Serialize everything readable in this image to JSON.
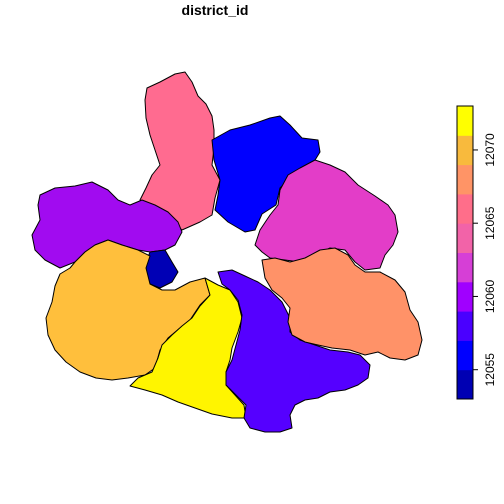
{
  "title": "district_id",
  "legend": {
    "ticks": [
      "12055",
      "12060",
      "12065",
      "12070"
    ],
    "tick_values": [
      12055,
      12060,
      12065,
      12070
    ],
    "range": [
      12053,
      12073
    ],
    "color_bands": [
      "#0000B3",
      "#0000FF",
      "#4A00FF",
      "#A000FF",
      "#D63FD6",
      "#F263A8",
      "#FF6E8A",
      "#FF9466",
      "#F8BA3D",
      "#FFFF00"
    ]
  },
  "colors": {
    "north_west_pink": "#FF6B90",
    "north_blue": "#0000FF",
    "north_east_magenta": "#E33DC8",
    "west_purple": "#A10BF0",
    "center_dark_blue": "#0000B5",
    "south_west_orange": "#FFBF3C",
    "south_yellow": "#FFF500",
    "south_east_violet": "#5500FF",
    "east_salmon": "#FF9268",
    "border": "#000000"
  }
}
